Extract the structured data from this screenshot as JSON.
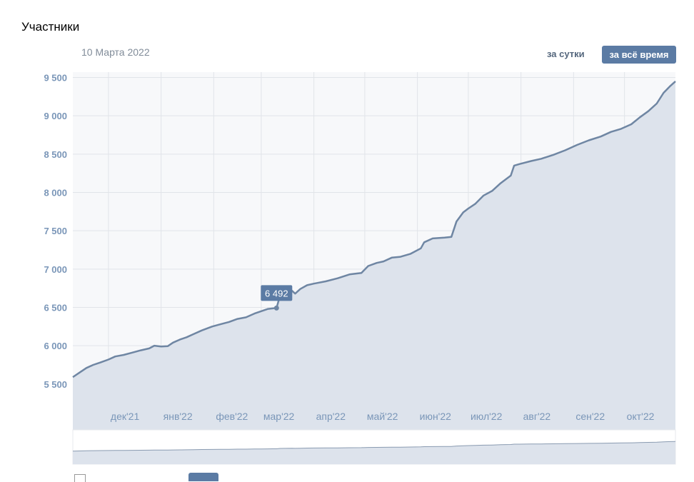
{
  "header": {
    "title": "Участники",
    "date_label": "10 Марта 2022",
    "btn_day": "за сутки",
    "btn_all": "за всё время"
  },
  "colors": {
    "line": "#6f86a3",
    "area": "#dde3ec",
    "plot_bg": "#f7f8fa",
    "grid": "#e1e4e9",
    "accent": "#5b7ba4",
    "label": "#7a96b8"
  },
  "chart_data": {
    "type": "area",
    "title": "Участники",
    "xlabel": "",
    "ylabel": "",
    "ylim": [
      5200,
      9570
    ],
    "y_ticks": [
      5500,
      6000,
      6500,
      7000,
      7500,
      8000,
      8500,
      9000,
      9500
    ],
    "y_tick_labels": [
      "5 500",
      "6 000",
      "6 500",
      "7 000",
      "7 500",
      "8 000",
      "8 500",
      "9 000",
      "9 500"
    ],
    "x_range": [
      "2021-11-10",
      "2022-10-31"
    ],
    "x_ticks": [
      {
        "date": "2021-12-01",
        "label": "дек'21"
      },
      {
        "date": "2022-01-01",
        "label": "янв'22"
      },
      {
        "date": "2022-02-01",
        "label": "фев'22"
      },
      {
        "date": "2022-03-01",
        "label": "мар'22"
      },
      {
        "date": "2022-04-01",
        "label": "апр'22"
      },
      {
        "date": "2022-05-01",
        "label": "май'22"
      },
      {
        "date": "2022-06-01",
        "label": "июн'22"
      },
      {
        "date": "2022-07-01",
        "label": "июл'22"
      },
      {
        "date": "2022-08-01",
        "label": "авг'22"
      },
      {
        "date": "2022-09-01",
        "label": "сен'22"
      },
      {
        "date": "2022-10-01",
        "label": "окт'22"
      }
    ],
    "grid": true,
    "series": [
      {
        "points": [
          [
            "2021-11-10",
            5590
          ],
          [
            "2021-11-14",
            5650
          ],
          [
            "2021-11-18",
            5710
          ],
          [
            "2021-11-22",
            5750
          ],
          [
            "2021-11-26",
            5780
          ],
          [
            "2021-12-01",
            5820
          ],
          [
            "2021-12-05",
            5860
          ],
          [
            "2021-12-10",
            5880
          ],
          [
            "2021-12-15",
            5910
          ],
          [
            "2021-12-20",
            5940
          ],
          [
            "2021-12-25",
            5965
          ],
          [
            "2021-12-28",
            6000
          ],
          [
            "2022-01-01",
            5990
          ],
          [
            "2022-01-05",
            5995
          ],
          [
            "2022-01-08",
            6040
          ],
          [
            "2022-01-12",
            6080
          ],
          [
            "2022-01-16",
            6110
          ],
          [
            "2022-01-20",
            6150
          ],
          [
            "2022-01-25",
            6200
          ],
          [
            "2022-01-31",
            6250
          ],
          [
            "2022-02-05",
            6280
          ],
          [
            "2022-02-10",
            6310
          ],
          [
            "2022-02-15",
            6350
          ],
          [
            "2022-02-20",
            6370
          ],
          [
            "2022-02-25",
            6420
          ],
          [
            "2022-03-01",
            6450
          ],
          [
            "2022-03-05",
            6480
          ],
          [
            "2022-03-10",
            6492
          ],
          [
            "2022-03-12",
            6650
          ],
          [
            "2022-03-15",
            6680
          ],
          [
            "2022-03-19",
            6720
          ],
          [
            "2022-03-21",
            6680
          ],
          [
            "2022-03-24",
            6740
          ],
          [
            "2022-03-28",
            6790
          ],
          [
            "2022-04-01",
            6810
          ],
          [
            "2022-04-08",
            6840
          ],
          [
            "2022-04-15",
            6880
          ],
          [
            "2022-04-22",
            6930
          ],
          [
            "2022-04-29",
            6950
          ],
          [
            "2022-05-03",
            7040
          ],
          [
            "2022-05-08",
            7080
          ],
          [
            "2022-05-12",
            7100
          ],
          [
            "2022-05-17",
            7150
          ],
          [
            "2022-05-22",
            7160
          ],
          [
            "2022-05-28",
            7200
          ],
          [
            "2022-06-03",
            7270
          ],
          [
            "2022-06-05",
            7350
          ],
          [
            "2022-06-10",
            7400
          ],
          [
            "2022-06-17",
            7410
          ],
          [
            "2022-06-21",
            7420
          ],
          [
            "2022-06-24",
            7620
          ],
          [
            "2022-06-28",
            7740
          ],
          [
            "2022-07-01",
            7790
          ],
          [
            "2022-07-05",
            7850
          ],
          [
            "2022-07-10",
            7960
          ],
          [
            "2022-07-15",
            8020
          ],
          [
            "2022-07-20",
            8120
          ],
          [
            "2022-07-26",
            8220
          ],
          [
            "2022-07-28",
            8350
          ],
          [
            "2022-07-31",
            8370
          ],
          [
            "2022-08-07",
            8410
          ],
          [
            "2022-08-13",
            8440
          ],
          [
            "2022-08-20",
            8490
          ],
          [
            "2022-08-27",
            8550
          ],
          [
            "2022-09-03",
            8620
          ],
          [
            "2022-09-10",
            8680
          ],
          [
            "2022-09-17",
            8730
          ],
          [
            "2022-09-23",
            8790
          ],
          [
            "2022-09-29",
            8830
          ],
          [
            "2022-10-05",
            8890
          ],
          [
            "2022-10-10",
            8980
          ],
          [
            "2022-10-15",
            9060
          ],
          [
            "2022-10-20",
            9160
          ],
          [
            "2022-10-24",
            9300
          ],
          [
            "2022-10-28",
            9390
          ],
          [
            "2022-10-31",
            9450
          ]
        ]
      }
    ],
    "tooltip": {
      "date": "2022-03-10",
      "value": 6492,
      "label": "6 492"
    },
    "navigator": {
      "type": "area"
    }
  }
}
